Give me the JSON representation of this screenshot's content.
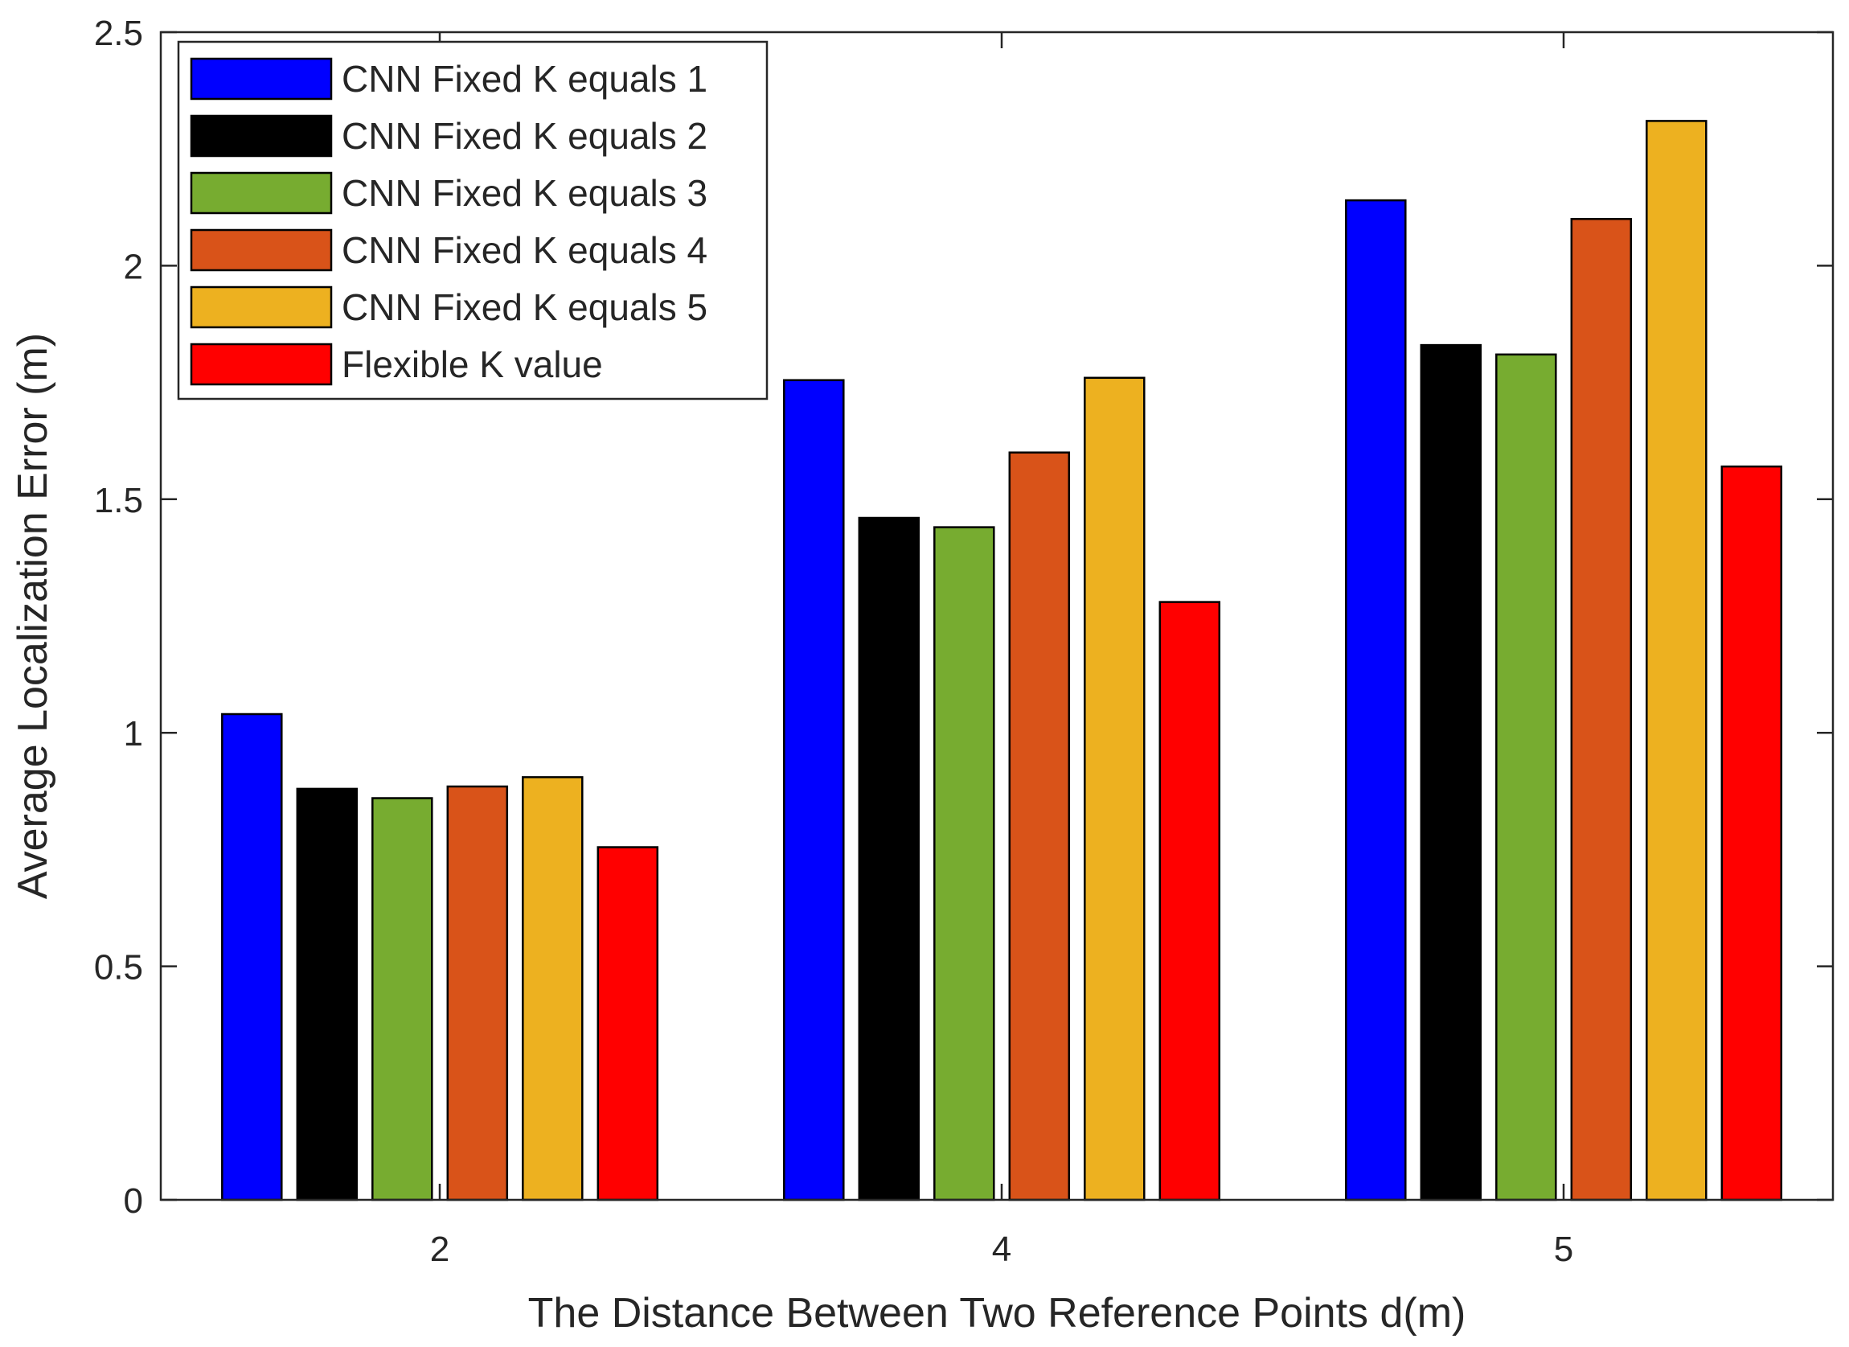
{
  "chart_data": {
    "type": "bar",
    "title": "",
    "xlabel": "The Distance Between Two Reference Points d(m)",
    "ylabel": "Average Localization Error (m)",
    "categories": [
      "2",
      "4",
      "5"
    ],
    "ylim": [
      0,
      2.5
    ],
    "yticks": [
      "0",
      "0.5",
      "1",
      "1.5",
      "2",
      "2.5"
    ],
    "grid": false,
    "legend_position": "top-left",
    "series": [
      {
        "name": "CNN Fixed K equals 1",
        "color": "#0000ff",
        "values": [
          1.04,
          1.755,
          2.14
        ]
      },
      {
        "name": "CNN Fixed K equals 2",
        "color": "#000000",
        "values": [
          0.88,
          1.46,
          1.83
        ]
      },
      {
        "name": "CNN Fixed K equals 3",
        "color": "#77ac30",
        "values": [
          0.86,
          1.44,
          1.81
        ]
      },
      {
        "name": "CNN Fixed K equals 4",
        "color": "#d95319",
        "values": [
          0.885,
          1.6,
          2.1
        ]
      },
      {
        "name": "CNN Fixed K equals 5",
        "color": "#edb120",
        "values": [
          0.905,
          1.76,
          2.31
        ]
      },
      {
        "name": "Flexible K value",
        "color": "#ff0000",
        "values": [
          0.755,
          1.28,
          1.57
        ]
      }
    ]
  }
}
